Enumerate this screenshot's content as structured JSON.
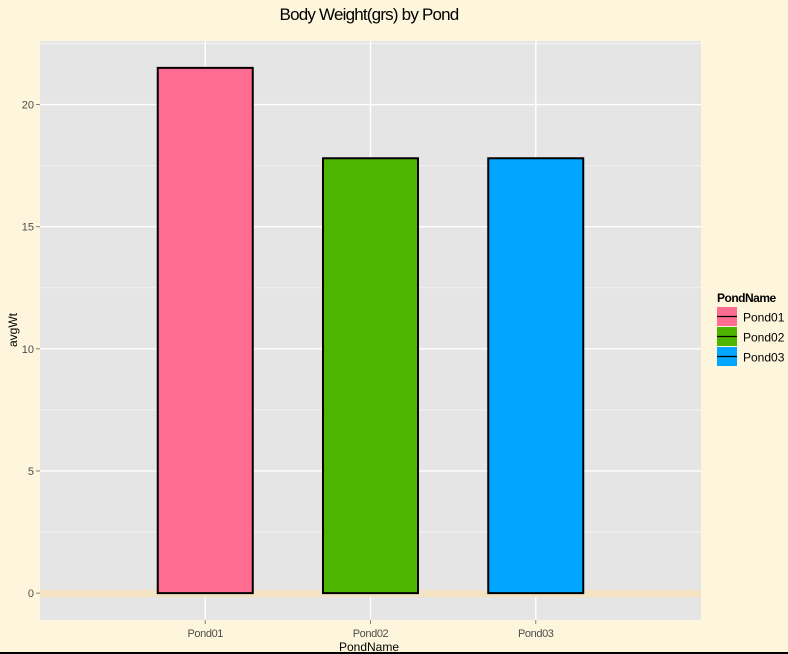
{
  "chart_data": {
    "type": "bar",
    "title": "Body Weight(grs) by Pond",
    "xlabel": "PondName",
    "ylabel": "avgWt",
    "categories": [
      "Pond01",
      "Pond02",
      "Pond03"
    ],
    "values": [
      21.5,
      17.8,
      17.8
    ],
    "colors": [
      "#FF6C91",
      "#4DB500",
      "#00A6FF"
    ],
    "ylim": [
      -1.1,
      22.6
    ],
    "yticks": [
      0,
      5,
      10,
      15,
      20
    ],
    "grid": true,
    "legend": {
      "title": "PondName",
      "placement": "right",
      "items": [
        "Pond01",
        "Pond02",
        "Pond03"
      ]
    }
  },
  "colors": {
    "page_background": "#FDF5DC",
    "panel_background": "#E5E5E5",
    "grid_major": "#FFFFFF",
    "grid_minor": "#F2F2F2",
    "zero_band": "#F5E2C2",
    "bar_outline": "#000000"
  }
}
